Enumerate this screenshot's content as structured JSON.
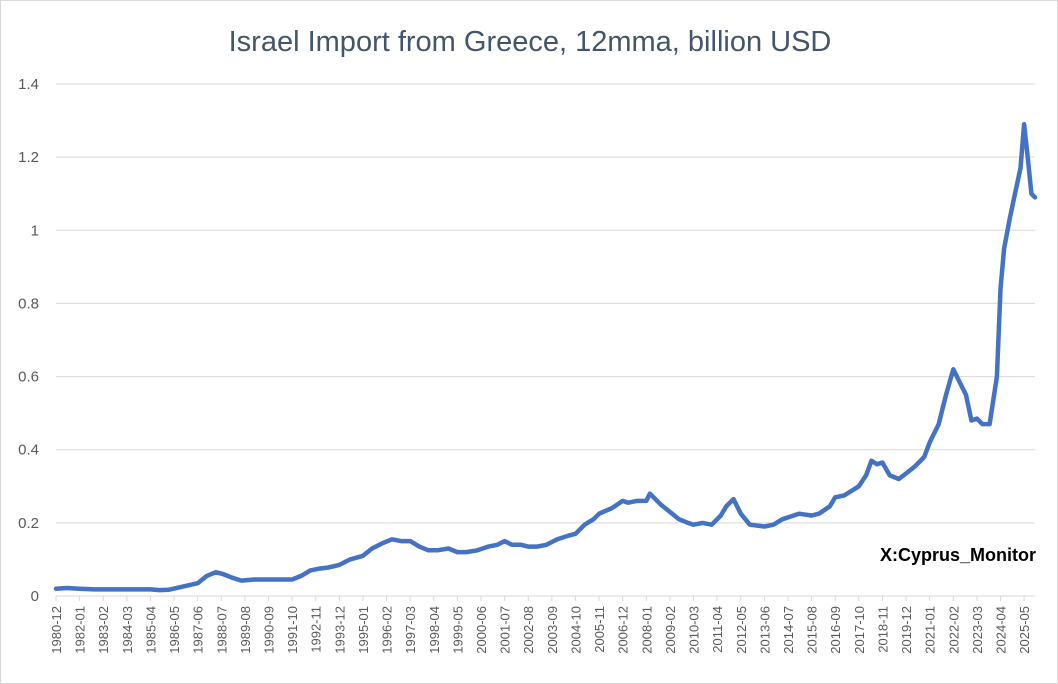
{
  "chart_data": {
    "type": "line",
    "title": "Israel Import from Greece, 12mma, billion USD",
    "xlabel": "",
    "ylabel": "",
    "ylim": [
      0,
      1.4
    ],
    "yticks": [
      0,
      0.2,
      0.4,
      0.6,
      0.8,
      1,
      1.2,
      1.4
    ],
    "ytick_labels": [
      "0",
      "0.2",
      "0.4",
      "0.6",
      "0.8",
      "1",
      "1.2",
      "1.4"
    ],
    "xlim": [
      "1980-12",
      "2025-11"
    ],
    "xtick_labels": [
      "1980-12",
      "1982-01",
      "1983-02",
      "1984-03",
      "1985-04",
      "1986-05",
      "1987-06",
      "1988-07",
      "1989-08",
      "1990-09",
      "1991-10",
      "1992-11",
      "1993-12",
      "1995-01",
      "1996-02",
      "1997-03",
      "1998-04",
      "1999-05",
      "2000-06",
      "2001-07",
      "2002-08",
      "2003-09",
      "2004-10",
      "2005-11",
      "2006-12",
      "2008-01",
      "2009-02",
      "2010-03",
      "2011-04",
      "2012-05",
      "2013-06",
      "2014-07",
      "2015-08",
      "2016-09",
      "2017-10",
      "2018-11",
      "2019-12",
      "2021-01",
      "2022-02",
      "2023-03",
      "2024-04",
      "2025-05"
    ],
    "grid": "horizontal",
    "legend": "none",
    "line_color": "#4472c4",
    "series": [
      {
        "x": [
          "1980-12",
          "1981-06",
          "1982-01",
          "1982-09",
          "1983-06",
          "1984-06",
          "1985-04",
          "1985-09",
          "1986-02",
          "1986-09",
          "1987-06",
          "1987-11",
          "1988-04",
          "1988-08",
          "1989-01",
          "1989-06",
          "1990-01",
          "1990-09",
          "1991-03",
          "1991-10",
          "1992-03",
          "1992-08",
          "1993-01",
          "1993-06",
          "1993-12",
          "1994-06",
          "1995-01",
          "1995-06",
          "1995-12",
          "1996-05",
          "1996-10",
          "1997-03",
          "1997-08",
          "1998-01",
          "1998-06",
          "1998-12",
          "1999-05",
          "1999-10",
          "2000-04",
          "2000-10",
          "2001-03",
          "2001-07",
          "2001-11",
          "2002-04",
          "2002-08",
          "2003-01",
          "2003-06",
          "2003-12",
          "2004-06",
          "2004-10",
          "2005-03",
          "2005-08",
          "2005-11",
          "2006-06",
          "2006-12",
          "2007-03",
          "2007-08",
          "2008-01",
          "2008-03",
          "2008-09",
          "2009-02",
          "2009-07",
          "2009-12",
          "2010-03",
          "2010-08",
          "2011-01",
          "2011-06",
          "2011-09",
          "2012-01",
          "2012-05",
          "2012-10",
          "2013-06",
          "2013-11",
          "2014-04",
          "2014-07",
          "2015-01",
          "2015-08",
          "2015-12",
          "2016-06",
          "2016-09",
          "2017-02",
          "2017-10",
          "2018-02",
          "2018-05",
          "2018-08",
          "2018-11",
          "2019-03",
          "2019-08",
          "2019-12",
          "2020-05",
          "2020-10",
          "2021-01",
          "2021-06",
          "2021-10",
          "2022-02",
          "2022-06",
          "2022-09",
          "2022-12",
          "2023-03",
          "2023-06",
          "2023-10",
          "2024-02",
          "2024-04",
          "2024-06",
          "2024-09",
          "2024-12",
          "2025-03",
          "2025-05",
          "2025-07",
          "2025-09",
          "2025-11"
        ],
        "values": [
          0.02,
          0.022,
          0.02,
          0.018,
          0.018,
          0.018,
          0.018,
          0.016,
          0.017,
          0.025,
          0.035,
          0.055,
          0.065,
          0.06,
          0.05,
          0.042,
          0.045,
          0.045,
          0.045,
          0.045,
          0.055,
          0.07,
          0.075,
          0.078,
          0.085,
          0.1,
          0.11,
          0.13,
          0.145,
          0.155,
          0.15,
          0.15,
          0.135,
          0.125,
          0.125,
          0.13,
          0.12,
          0.12,
          0.125,
          0.135,
          0.14,
          0.15,
          0.14,
          0.14,
          0.135,
          0.135,
          0.14,
          0.155,
          0.165,
          0.17,
          0.195,
          0.21,
          0.225,
          0.24,
          0.26,
          0.255,
          0.26,
          0.26,
          0.28,
          0.25,
          0.23,
          0.21,
          0.2,
          0.195,
          0.2,
          0.195,
          0.22,
          0.245,
          0.265,
          0.225,
          0.195,
          0.19,
          0.195,
          0.21,
          0.215,
          0.225,
          0.22,
          0.225,
          0.245,
          0.27,
          0.275,
          0.3,
          0.33,
          0.37,
          0.36,
          0.365,
          0.33,
          0.32,
          0.335,
          0.355,
          0.38,
          0.42,
          0.47,
          0.55,
          0.62,
          0.58,
          0.55,
          0.48,
          0.485,
          0.47,
          0.47,
          0.6,
          0.84,
          0.95,
          1.03,
          1.1,
          1.17,
          1.29,
          1.2,
          1.1,
          1.09
        ]
      }
    ],
    "annotations": [
      "X:Cyprus_Monitor"
    ]
  }
}
